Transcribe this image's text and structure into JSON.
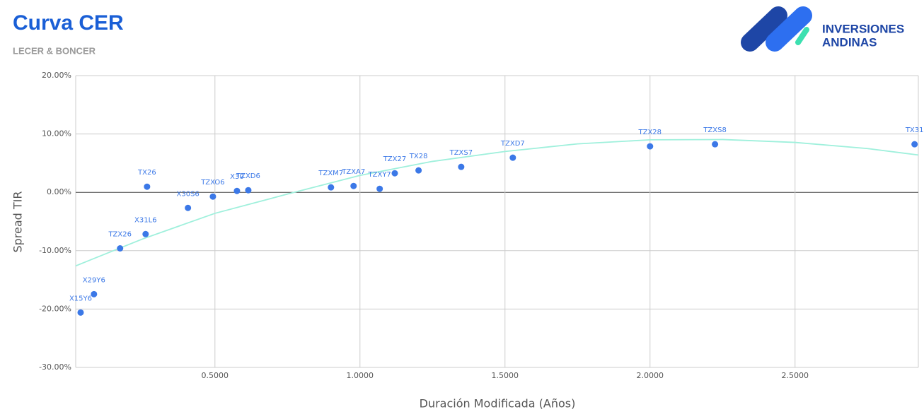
{
  "chart_data": {
    "type": "scatter",
    "title": "Curva CER",
    "subtitle": "LECER & BONCER",
    "logo": {
      "line1": "INVERSIONES",
      "line2": "ANDINAS"
    },
    "x_label": "Duración Modificada (Años)",
    "y_label": "Spread TIR",
    "xlim": [
      0.02,
      2.925
    ],
    "ylim": [
      -30,
      20
    ],
    "xticks": [
      {
        "value": 0.5,
        "label": "0.5000"
      },
      {
        "value": 1.0,
        "label": "1.0000"
      },
      {
        "value": 1.5,
        "label": "1.5000"
      },
      {
        "value": 2.0,
        "label": "2.0000"
      },
      {
        "value": 2.5,
        "label": "2.5000"
      }
    ],
    "yticks": [
      {
        "value": -30,
        "label": "-30.00%"
      },
      {
        "value": -20,
        "label": "-20.00%"
      },
      {
        "value": -10,
        "label": "-10.00%"
      },
      {
        "value": 0,
        "label": "0.00%"
      },
      {
        "value": 10,
        "label": "10.00%"
      },
      {
        "value": 20,
        "label": "20.00%"
      }
    ],
    "grid": true,
    "series": [
      {
        "color": "#3b78e7",
        "labels": [
          "X15Y6",
          "X29Y6",
          "TZX26",
          "X31L6",
          "TX26",
          "X30S6",
          "TZXO6",
          "X30",
          "TZXD6",
          "TZXM7",
          "TZXA7",
          "TZXY7",
          "TZX27",
          "TX28",
          "TZXS7",
          "TZXD7",
          "TZX28",
          "TZXS8",
          "TX31"
        ],
        "x": [
          0.037,
          0.083,
          0.173,
          0.261,
          0.266,
          0.407,
          0.493,
          0.576,
          0.615,
          0.9,
          0.978,
          1.068,
          1.12,
          1.202,
          1.349,
          1.527,
          2.0,
          2.224,
          2.912
        ],
        "values": [
          -20.6,
          -17.45,
          -9.6,
          -7.15,
          0.97,
          -2.67,
          -0.73,
          0.24,
          0.36,
          0.85,
          1.09,
          0.6,
          3.27,
          3.76,
          4.36,
          5.94,
          7.88,
          8.24,
          8.24
        ]
      }
    ],
    "trendline": {
      "color": "#9ff0dc",
      "x": [
        0.02,
        0.25,
        0.5,
        0.75,
        1.0,
        1.25,
        1.5,
        1.75,
        2.0,
        2.25,
        2.5,
        2.75,
        2.925
      ],
      "values": [
        -12.6,
        -8.0,
        -3.6,
        -0.3,
        2.9,
        5.3,
        7.0,
        8.3,
        9.0,
        9.05,
        8.55,
        7.5,
        6.4
      ]
    }
  }
}
